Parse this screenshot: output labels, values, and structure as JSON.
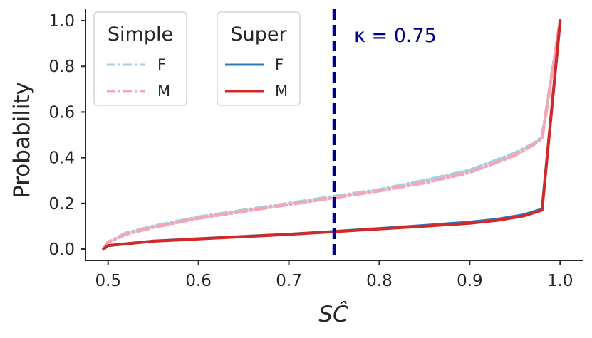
{
  "chart_data": {
    "type": "line",
    "title": "",
    "xlabel": "SĈ",
    "ylabel": "Probability",
    "xlim": [
      0.475,
      1.025
    ],
    "ylim": [
      -0.05,
      1.05
    ],
    "x_ticks": [
      0.5,
      0.6,
      0.7,
      0.8,
      0.9,
      1.0
    ],
    "x_tick_labels": [
      "0.5",
      "0.6",
      "0.7",
      "0.8",
      "0.9",
      "1.0"
    ],
    "y_ticks": [
      0.0,
      0.2,
      0.4,
      0.6,
      0.8,
      1.0
    ],
    "y_tick_labels": [
      "0.0",
      "0.2",
      "0.4",
      "0.6",
      "0.8",
      "1.0"
    ],
    "grid": false,
    "vline": {
      "x": 0.75,
      "color": "#00008b",
      "style": "dashed"
    },
    "annotation": "κ = 0.75",
    "legends": [
      {
        "title": "Simple",
        "placement": "top-left",
        "entries": [
          {
            "label": "F",
            "color": "#a6cee3",
            "style": "dashdot"
          },
          {
            "label": "M",
            "color": "#f4a6b4",
            "style": "dashdot"
          }
        ]
      },
      {
        "title": "Super",
        "placement": "top-center",
        "entries": [
          {
            "label": "F",
            "color": "#2b7bba",
            "style": "solid"
          },
          {
            "label": "M",
            "color": "#d62728",
            "style": "solid"
          }
        ]
      }
    ],
    "series": [
      {
        "group": "Simple",
        "label": "F",
        "color": "#a6cee3",
        "style": "dashdot",
        "x": [
          0.495,
          0.5,
          0.52,
          0.55,
          0.6,
          0.65,
          0.7,
          0.75,
          0.8,
          0.85,
          0.9,
          0.95,
          0.97,
          0.98,
          1.0
        ],
        "y": [
          0.0,
          0.03,
          0.07,
          0.1,
          0.14,
          0.17,
          0.2,
          0.23,
          0.26,
          0.3,
          0.345,
          0.42,
          0.46,
          0.49,
          1.0
        ]
      },
      {
        "group": "Simple",
        "label": "M",
        "color": "#f4a6b4",
        "style": "dashdot",
        "x": [
          0.495,
          0.5,
          0.52,
          0.55,
          0.6,
          0.65,
          0.7,
          0.75,
          0.8,
          0.85,
          0.9,
          0.95,
          0.97,
          0.98,
          1.0
        ],
        "y": [
          0.0,
          0.03,
          0.065,
          0.095,
          0.135,
          0.165,
          0.195,
          0.225,
          0.255,
          0.29,
          0.335,
          0.41,
          0.455,
          0.485,
          1.0
        ]
      },
      {
        "group": "Super",
        "label": "F",
        "color": "#2b7bba",
        "style": "solid",
        "x": [
          0.495,
          0.5,
          0.55,
          0.6,
          0.65,
          0.7,
          0.75,
          0.8,
          0.85,
          0.9,
          0.93,
          0.96,
          0.98,
          1.0
        ],
        "y": [
          0.0,
          0.015,
          0.035,
          0.045,
          0.055,
          0.065,
          0.077,
          0.09,
          0.103,
          0.118,
          0.13,
          0.15,
          0.175,
          1.0
        ]
      },
      {
        "group": "Super",
        "label": "M",
        "color": "#d62728",
        "style": "solid",
        "x": [
          0.495,
          0.5,
          0.55,
          0.6,
          0.65,
          0.7,
          0.75,
          0.8,
          0.85,
          0.9,
          0.93,
          0.96,
          0.98,
          1.0
        ],
        "y": [
          0.0,
          0.015,
          0.034,
          0.044,
          0.054,
          0.064,
          0.076,
          0.088,
          0.1,
          0.113,
          0.125,
          0.145,
          0.17,
          1.0
        ]
      }
    ]
  }
}
